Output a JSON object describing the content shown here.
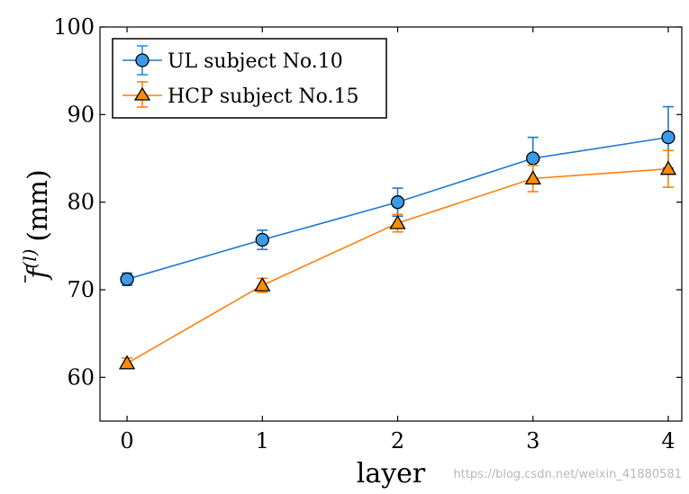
{
  "chart_data": {
    "type": "line",
    "x": [
      0,
      1,
      2,
      3,
      4
    ],
    "xticks": [
      "0",
      "1",
      "2",
      "3",
      "4"
    ],
    "yticks": [
      "60",
      "70",
      "80",
      "90",
      "100"
    ],
    "xlim": [
      -0.2,
      4.1
    ],
    "ylim": [
      55,
      100
    ],
    "xlabel": "layer",
    "ylabel_main": "f",
    "ylabel_sup": "(l)",
    "ylabel_unit": "(mm)",
    "grid": false,
    "legend_position": "top-left",
    "series": [
      {
        "name": "UL subject No.10",
        "color": "#1f77d0",
        "fill": "#3b9ae6",
        "marker": "circle",
        "values": [
          71.2,
          75.7,
          80.0,
          85.0,
          87.4
        ],
        "err": [
          0.7,
          1.1,
          1.6,
          2.4,
          3.5
        ]
      },
      {
        "name": "HCP subject No.15",
        "color": "#ff7f0e",
        "fill": "#ff8c00",
        "marker": "triangle",
        "values": [
          61.6,
          70.5,
          77.6,
          82.7,
          83.8
        ],
        "err": [
          0.6,
          0.8,
          1.0,
          1.5,
          2.1
        ]
      }
    ]
  },
  "watermark": "https://blog.csdn.net/weixin_41880581"
}
